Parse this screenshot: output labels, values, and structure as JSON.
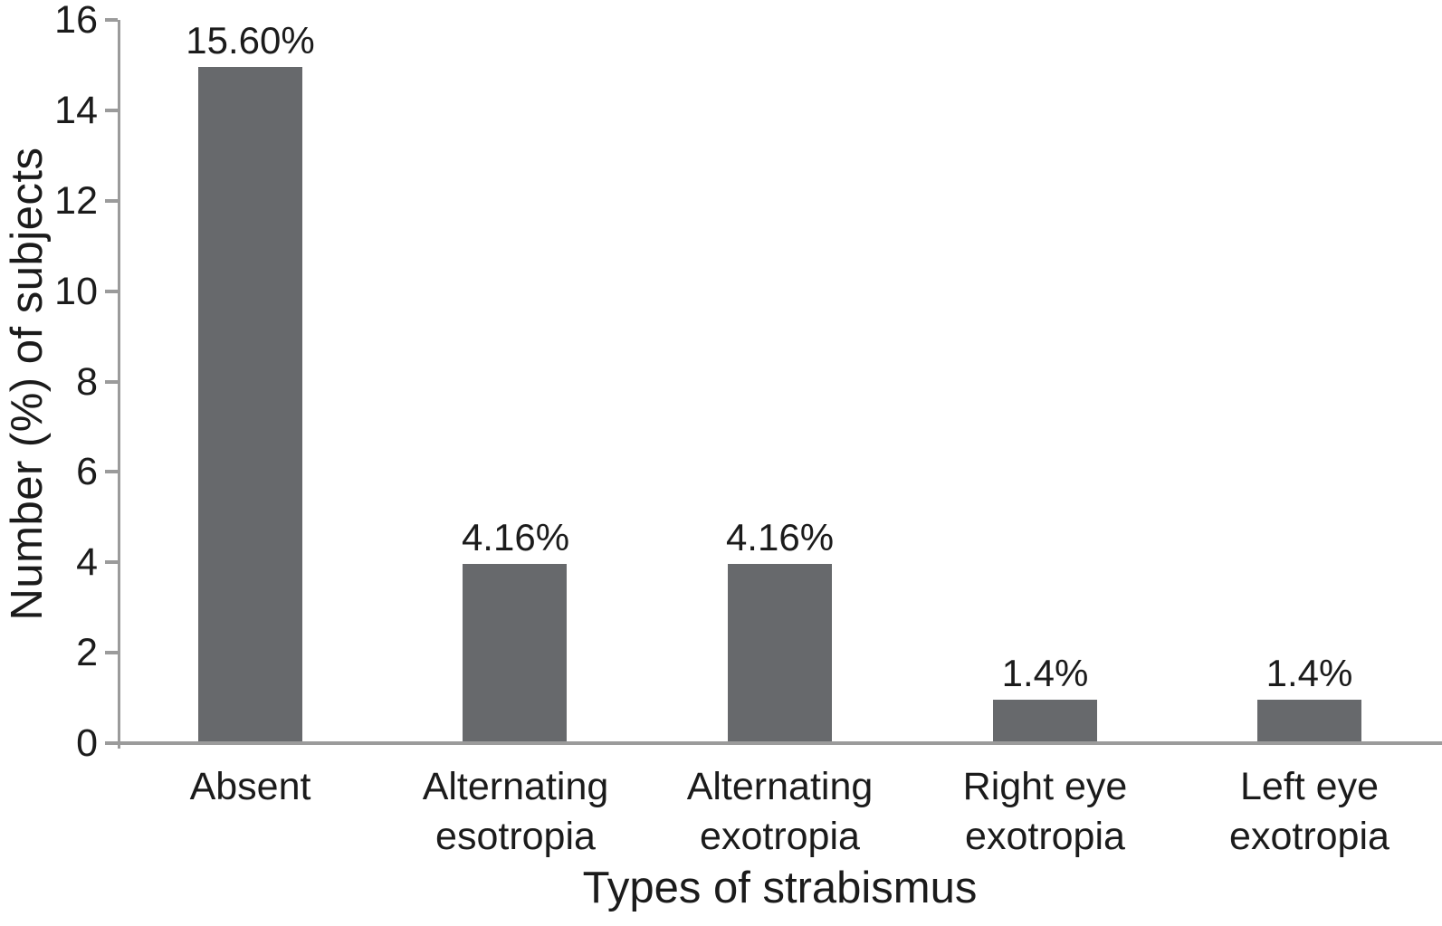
{
  "chart_data": {
    "type": "bar",
    "title": "",
    "xlabel": "Types of strabismus",
    "ylabel": "Number (%) of subjects",
    "categories": [
      "Absent",
      "Alternating\nesotropia",
      "Alternating\nexotropia",
      "Right eye\nexotropia",
      "Left eye\nexotropia"
    ],
    "values": [
      15,
      4,
      4,
      1,
      1
    ],
    "bar_labels": [
      "15.60%",
      "4.16%",
      "4.16%",
      "1.4%",
      "1.4%"
    ],
    "yticks": [
      0,
      2,
      4,
      6,
      8,
      10,
      12,
      14,
      16
    ],
    "ylim": [
      0,
      16
    ],
    "grid": false,
    "legend": null,
    "bar_color": "#67696c",
    "axis_color": "#9b9b9b",
    "text_color": "#1b1b1b"
  }
}
